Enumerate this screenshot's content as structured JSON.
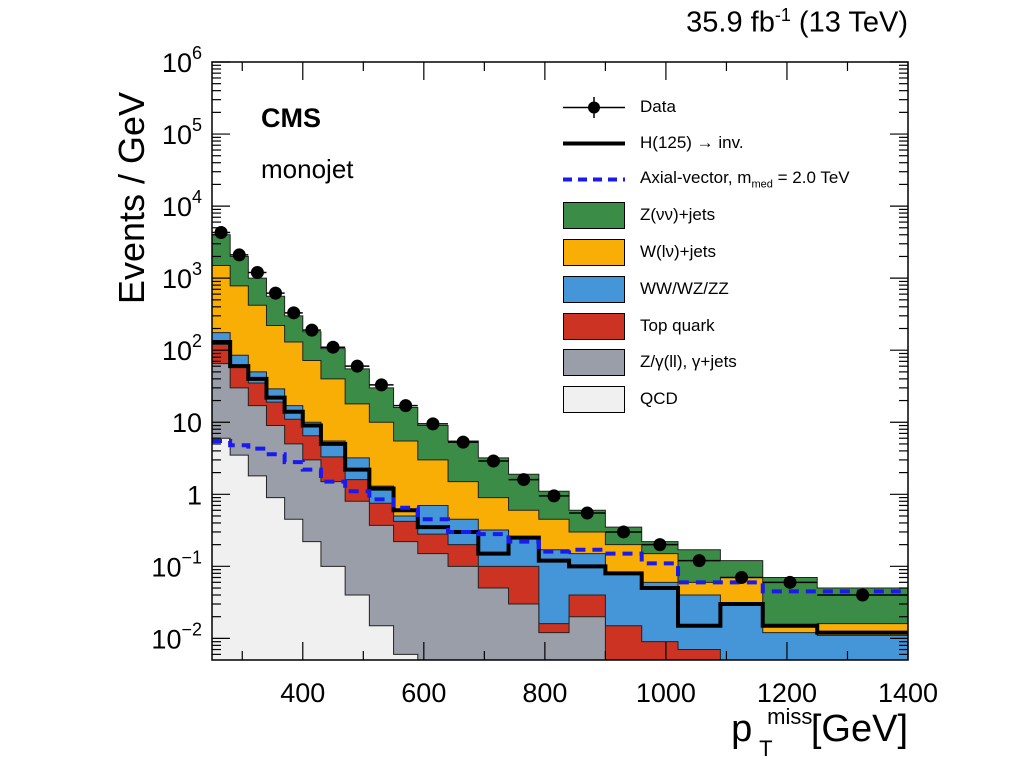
{
  "header": {
    "lumi_value": "35.9 fb",
    "lumi_exp": "-1",
    "energy": "(13 TeV)",
    "experiment": "CMS",
    "category": "monojet"
  },
  "axes": {
    "ylabel": "Events / GeV",
    "xlabel_main": "p",
    "xlabel_sup": "miss",
    "xlabel_sub": "T",
    "xlabel_unit": "[GeV]"
  },
  "legend": [
    {
      "label": "Data",
      "type": "marker"
    },
    {
      "label": "H(125) → inv.",
      "type": "line"
    },
    {
      "label_main": "Axial-vector, m",
      "label_sub": "med",
      "label_tail": " = 2.0 TeV",
      "type": "dashed"
    },
    {
      "label": "Z(νν)+jets",
      "type": "box",
      "color": "#3a8c46"
    },
    {
      "label": "W(lν)+jets",
      "type": "box",
      "color": "#f9ae05"
    },
    {
      "label": "WW/WZ/ZZ",
      "type": "box",
      "color": "#4496d8"
    },
    {
      "label": "Top quark",
      "type": "box",
      "color": "#cc3322"
    },
    {
      "label": "Z/γ(ll), γ+jets",
      "type": "box",
      "color": "#9a9ea8"
    },
    {
      "label": "QCD",
      "type": "box",
      "color": "#f0f0f0"
    }
  ],
  "chart_data": {
    "type": "area",
    "title": "",
    "xlabel": "p_T^miss [GeV]",
    "ylabel": "Events / GeV",
    "xlim": [
      250,
      1400
    ],
    "ylim": [
      0.005,
      1000000
    ],
    "yscale": "log",
    "x_ticks": [
      "400",
      "600",
      "800",
      "1000",
      "1200",
      "1400"
    ],
    "y_ticks": [
      "10^-2",
      "10^-1",
      "1",
      "10",
      "10^2",
      "10^3",
      "10^4",
      "10^5",
      "10^6"
    ],
    "bin_edges": [
      250,
      280,
      310,
      340,
      370,
      400,
      430,
      470,
      510,
      550,
      590,
      640,
      690,
      740,
      790,
      840,
      900,
      960,
      1020,
      1090,
      1160,
      1250,
      1400
    ],
    "stack_order": [
      "QCD",
      "Z/γ(ll), γ+jets",
      "Top quark",
      "WW/WZ/ZZ",
      "W(lν)+jets",
      "Z(νν)+jets"
    ],
    "stack_colors": [
      "#f0f0f0",
      "#9a9ea8",
      "#cc3322",
      "#4496d8",
      "#f9ae05",
      "#3a8c46"
    ],
    "stacked_cumulative": [
      {
        "name": "QCD",
        "values": [
          6,
          3.5,
          1.8,
          0.9,
          0.45,
          0.22,
          0.1,
          0.04,
          0.015,
          0.006,
          0.005,
          0.005,
          0.005,
          0.005,
          0.005,
          0.005,
          0.005,
          0.005,
          0.005,
          0.005,
          0.005,
          0.005
        ]
      },
      {
        "name": "Z/γ(ll), γ+jets",
        "values": [
          65,
          30,
          17,
          9,
          5,
          3,
          1.5,
          0.8,
          0.37,
          0.22,
          0.15,
          0.1,
          0.05,
          0.03,
          0.012,
          0.02,
          0.005,
          0.005,
          0.005,
          0.005,
          0.005,
          0.005
        ]
      },
      {
        "name": "Top quark",
        "values": [
          120,
          60,
          35,
          19,
          11,
          6.5,
          3.3,
          1.6,
          0.75,
          0.42,
          0.28,
          0.2,
          0.1,
          0.1,
          0.016,
          0.04,
          0.015,
          0.009,
          0.007,
          0.005,
          0.005,
          0.005
        ]
      },
      {
        "name": "WW/WZ/ZZ",
        "values": [
          175,
          85,
          50,
          29,
          17,
          10,
          5.5,
          3.2,
          1.3,
          0.5,
          0.7,
          0.45,
          0.32,
          0.25,
          0.17,
          0.15,
          0.08,
          0.06,
          0.04,
          0.03,
          0.012,
          0.011
        ]
      },
      {
        "name": "W(lν)+jets",
        "values": [
          1500,
          780,
          420,
          220,
          130,
          72,
          40,
          18,
          10,
          5.5,
          3,
          1.5,
          0.9,
          0.6,
          0.45,
          0.3,
          0.2,
          0.15,
          0.06,
          0.07,
          0.015,
          0.016
        ]
      },
      {
        "name": "Z(νν)+jets",
        "values": [
          4000,
          2000,
          1000,
          560,
          300,
          180,
          105,
          55,
          30,
          16,
          9,
          5.5,
          3.2,
          1.9,
          1.1,
          0.6,
          0.35,
          0.22,
          0.17,
          0.12,
          0.07,
          0.05
        ]
      }
    ],
    "series": [
      {
        "name": "Data",
        "x": [
          265,
          295,
          325,
          355,
          385,
          415,
          450,
          490,
          530,
          570,
          615,
          665,
          715,
          765,
          815,
          870,
          930,
          990,
          1055,
          1125,
          1205,
          1325
        ],
        "values": [
          4300,
          2100,
          1200,
          620,
          330,
          190,
          110,
          60,
          33,
          17,
          9.5,
          5.3,
          2.9,
          1.6,
          0.95,
          0.55,
          0.3,
          0.2,
          0.12,
          0.07,
          0.06,
          0.04
        ]
      },
      {
        "name": "H(125) → inv.",
        "values": [
          130,
          60,
          40,
          22,
          14,
          9,
          5,
          2.2,
          1.2,
          0.6,
          0.35,
          0.3,
          0.15,
          0.25,
          0.12,
          0.1,
          0.08,
          0.05,
          0.015,
          0.03,
          0.015,
          0.012
        ]
      },
      {
        "name": "Axial-vector, m_med = 2.0 TeV",
        "values": [
          5.5,
          4.8,
          4.3,
          3.6,
          2.8,
          2.2,
          1.5,
          1.1,
          0.85,
          0.65,
          0.45,
          0.3,
          0.28,
          0.22,
          0.16,
          0.17,
          0.15,
          0.11,
          0.06,
          0.06,
          0.045,
          0.045
        ]
      }
    ]
  }
}
